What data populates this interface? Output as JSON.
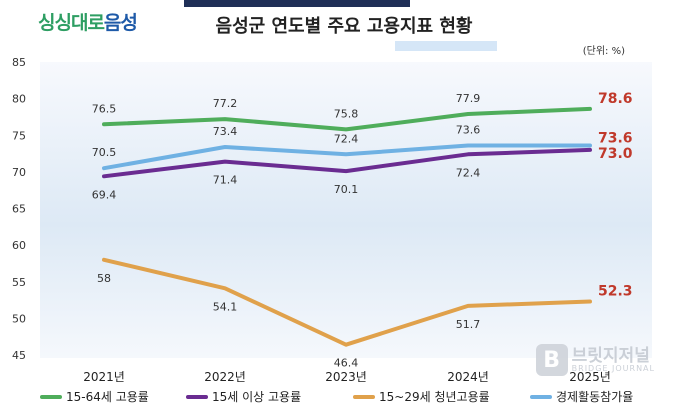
{
  "logo": {
    "part1": "싱싱대로",
    "part2": "음성"
  },
  "title": "음성군 연도별 주요 고용지표 현황",
  "unit": "(단위: %)",
  "watermark": {
    "main": "브릿지저널",
    "sub": "BRIDGE JOURNAL",
    "icon": "B"
  },
  "colors": {
    "employment_15_64": "#4fad5b",
    "employment_15_plus": "#6a2c91",
    "youth_employment": "#e0a14b",
    "participation": "#6fb1e3",
    "highlight": "#c0392b"
  },
  "chart_data": {
    "type": "line",
    "categories": [
      "2021년",
      "2022년",
      "2023년",
      "2024년",
      "2025년"
    ],
    "ylim": [
      45,
      85
    ],
    "yticks": [
      45,
      50,
      55,
      60,
      65,
      70,
      75,
      80,
      85
    ],
    "series": [
      {
        "name": "15-64세 고용률",
        "color": "#4fad5b",
        "values": [
          76.5,
          77.2,
          75.8,
          77.9,
          78.6
        ],
        "labels": [
          "76.5",
          "77.2",
          "75.8",
          "77.9",
          "78.6"
        ],
        "label_pos": "above"
      },
      {
        "name": "15세 이상 고용률",
        "color": "#6a2c91",
        "values": [
          69.4,
          71.4,
          70.1,
          72.4,
          73.0
        ],
        "labels": [
          "69.4",
          "71.4",
          "70.1",
          "72.4",
          "73.0"
        ],
        "label_pos": "below"
      },
      {
        "name": "15~29세 청년고용률",
        "color": "#e0a14b",
        "values": [
          58,
          54.1,
          46.4,
          51.7,
          52.3
        ],
        "labels": [
          "58",
          "54.1",
          "46.4",
          "51.7",
          "52.3"
        ],
        "label_pos": "below"
      },
      {
        "name": "경제활동참가율",
        "color": "#6fb1e3",
        "values": [
          70.5,
          73.4,
          72.4,
          73.6,
          73.6
        ],
        "labels": [
          "70.5",
          "73.4",
          "72.4",
          "73.6",
          "73.6"
        ],
        "label_pos": "above"
      }
    ]
  }
}
